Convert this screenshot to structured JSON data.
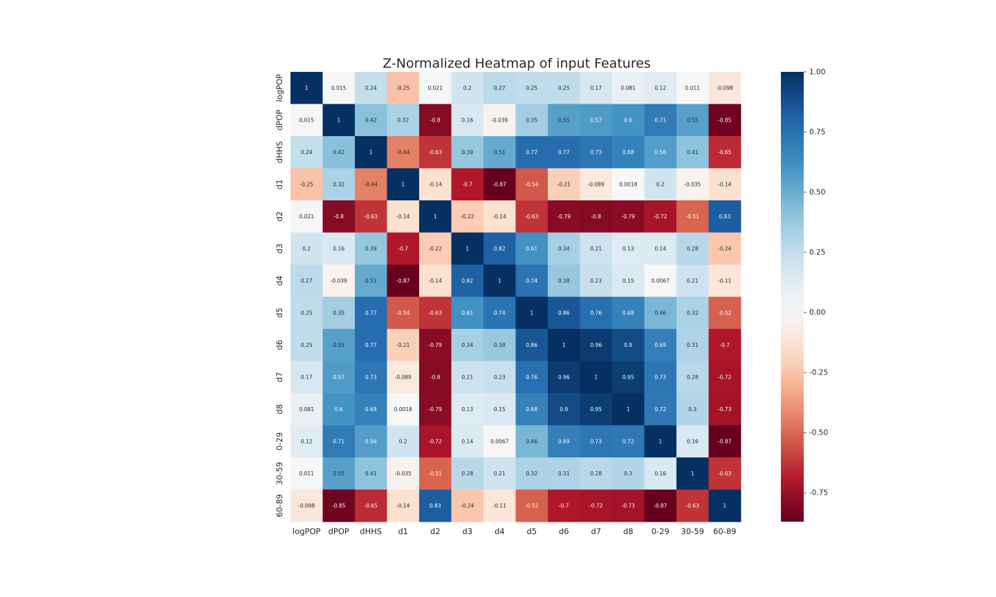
{
  "chart_data": {
    "type": "heatmap",
    "title": "Z-Normalized Heatmap of input Features",
    "xlabel": "",
    "ylabel": "",
    "x_labels": [
      "logPOP",
      "dPOP",
      "dHHS",
      "d1",
      "d2",
      "d3",
      "d4",
      "d5",
      "d6",
      "d7",
      "d8",
      "0-29",
      "30-59",
      "60-89"
    ],
    "y_labels": [
      "logPOP",
      "dPOP",
      "dHHS",
      "d1",
      "d2",
      "d3",
      "d4",
      "d5",
      "d6",
      "d7",
      "d8",
      "0-29",
      "30-59",
      "60-89"
    ],
    "values": [
      [
        1,
        0.015,
        0.24,
        -0.25,
        0.021,
        0.2,
        0.27,
        0.25,
        0.25,
        0.17,
        0.081,
        0.12,
        0.011,
        -0.098
      ],
      [
        0.015,
        1,
        0.42,
        0.32,
        -0.8,
        0.16,
        -0.039,
        0.35,
        0.55,
        0.57,
        0.6,
        0.71,
        0.55,
        -0.85
      ],
      [
        0.24,
        0.42,
        1,
        -0.44,
        -0.63,
        0.39,
        0.51,
        0.77,
        0.77,
        0.73,
        0.68,
        0.56,
        0.41,
        -0.65
      ],
      [
        -0.25,
        0.32,
        -0.44,
        1,
        -0.14,
        -0.7,
        -0.87,
        -0.54,
        -0.21,
        -0.089,
        0.0018,
        0.2,
        -0.035,
        -0.14
      ],
      [
        0.021,
        -0.8,
        -0.63,
        -0.14,
        1,
        -0.22,
        -0.14,
        -0.63,
        -0.79,
        -0.8,
        -0.79,
        -0.72,
        -0.51,
        0.83
      ],
      [
        0.2,
        0.16,
        0.39,
        -0.7,
        -0.22,
        1,
        0.82,
        0.61,
        0.34,
        0.21,
        0.13,
        0.14,
        0.28,
        -0.24
      ],
      [
        0.27,
        -0.039,
        0.51,
        -0.87,
        -0.14,
        0.82,
        1,
        0.74,
        0.38,
        0.23,
        0.15,
        0.0067,
        0.21,
        -0.11
      ],
      [
        0.25,
        0.35,
        0.77,
        -0.54,
        -0.63,
        0.61,
        0.74,
        1,
        0.86,
        0.76,
        0.68,
        0.46,
        0.32,
        -0.52
      ],
      [
        0.25,
        0.55,
        0.77,
        -0.21,
        -0.79,
        0.34,
        0.38,
        0.86,
        1,
        0.96,
        0.9,
        0.69,
        0.31,
        -0.7
      ],
      [
        0.17,
        0.57,
        0.73,
        -0.089,
        -0.8,
        0.21,
        0.23,
        0.76,
        0.96,
        1,
        0.95,
        0.73,
        0.28,
        -0.72
      ],
      [
        0.081,
        0.6,
        0.68,
        0.0018,
        -0.79,
        0.13,
        0.15,
        0.68,
        0.9,
        0.95,
        1,
        0.72,
        0.3,
        -0.73
      ],
      [
        0.12,
        0.71,
        0.56,
        0.2,
        -0.72,
        0.14,
        0.0067,
        0.46,
        0.69,
        0.73,
        0.72,
        1,
        0.16,
        -0.87
      ],
      [
        0.011,
        0.55,
        0.41,
        -0.035,
        -0.51,
        0.28,
        0.21,
        0.32,
        0.31,
        0.28,
        0.3,
        0.16,
        1,
        -0.63
      ],
      [
        -0.098,
        -0.85,
        -0.65,
        -0.14,
        0.83,
        -0.24,
        -0.11,
        -0.52,
        -0.7,
        -0.72,
        -0.73,
        -0.87,
        -0.63,
        1
      ]
    ],
    "colormap": "RdBu",
    "vmin": -0.87,
    "vmax": 1.0,
    "colorbar_ticks": [
      "1.00",
      "0.75",
      "0.50",
      "0.25",
      "0.00",
      "-0.25",
      "-0.50",
      "-0.75"
    ],
    "colorbar_tick_values": [
      1.0,
      0.75,
      0.5,
      0.25,
      0.0,
      -0.25,
      -0.5,
      -0.75
    ],
    "annotated": true,
    "grid": false,
    "legend": "colorbar-right"
  }
}
